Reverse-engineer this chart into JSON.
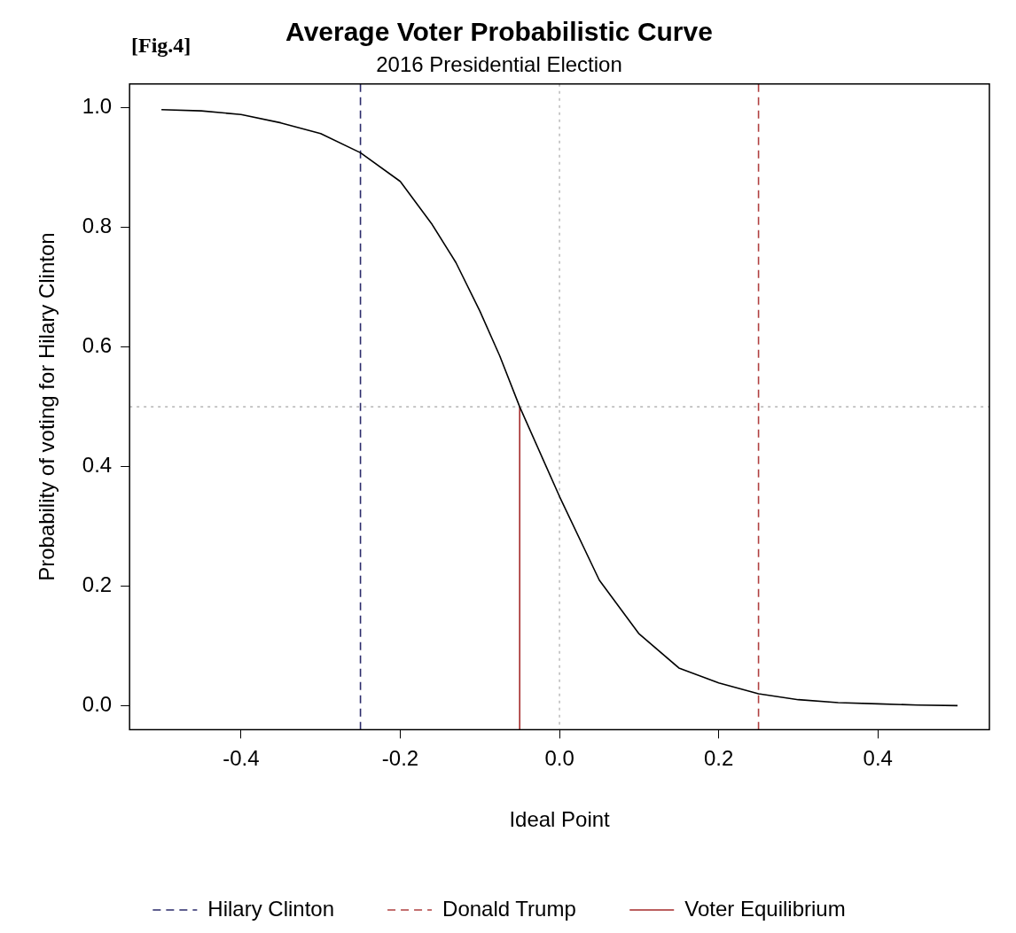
{
  "chart_data": {
    "type": "line",
    "title": "Average Voter Probabilistic Curve",
    "subtitle": "2016 Presidential Election",
    "xlabel": "Ideal Point",
    "ylabel": "Probability of voting for Hilary Clinton",
    "annotations": [
      "[Fig.4]"
    ],
    "xlim": [
      -0.54,
      0.54
    ],
    "xticks": [
      -0.4,
      -0.2,
      {
        "value": 0,
        "label": "0.0"
      },
      0.2,
      0.4
    ],
    "ylim": [
      -0.04,
      1.04
    ],
    "yticks": [
      {
        "value": 0,
        "label": "0.0"
      },
      0.2,
      0.4,
      0.6,
      0.8,
      {
        "value": 1,
        "label": "1.0"
      }
    ],
    "grid": false,
    "legend": "bottom",
    "marker": "none",
    "series": [
      {
        "color": "#000000",
        "x": [
          -0.5,
          -0.45,
          -0.4,
          -0.35,
          -0.3,
          -0.25,
          -0.2,
          -0.16,
          -0.13,
          -0.1,
          -0.075,
          -0.05,
          -0.02,
          0,
          0.05,
          0.1,
          0.15,
          0.2,
          0.25,
          0.3,
          0.35,
          0.4,
          0.45,
          0.5
        ],
        "values": [
          0.997,
          0.995,
          0.989,
          0.975,
          0.957,
          0.925,
          0.877,
          0.805,
          0.741,
          0.66,
          0.585,
          0.5,
          0.41,
          0.35,
          0.21,
          0.12,
          0.063,
          0.038,
          0.02,
          0.01,
          0.005,
          0.003,
          0.001,
          0
        ]
      },
      {
        "name": "Voter Equilibrium",
        "color": "#a52a2a",
        "line_style": "solid",
        "x": [
          -0.05,
          -0.05
        ],
        "values": [
          -0.04,
          0.5
        ]
      }
    ],
    "ref_lines": [
      {
        "axis": "x",
        "value": -0.25,
        "label": "Hilary Clinton",
        "color": "#2b2b6b",
        "line_style": "dashed"
      },
      {
        "axis": "x",
        "value": 0.25,
        "label": "Donald Trump",
        "color": "#b04040",
        "line_style": "dashed"
      },
      {
        "axis": "x",
        "value": 0,
        "label": null,
        "color": "#bebebe",
        "line_style": "dotted"
      },
      {
        "axis": "y",
        "value": 0.5,
        "label": null,
        "color": "#bebebe",
        "line_style": "dotted"
      }
    ]
  }
}
